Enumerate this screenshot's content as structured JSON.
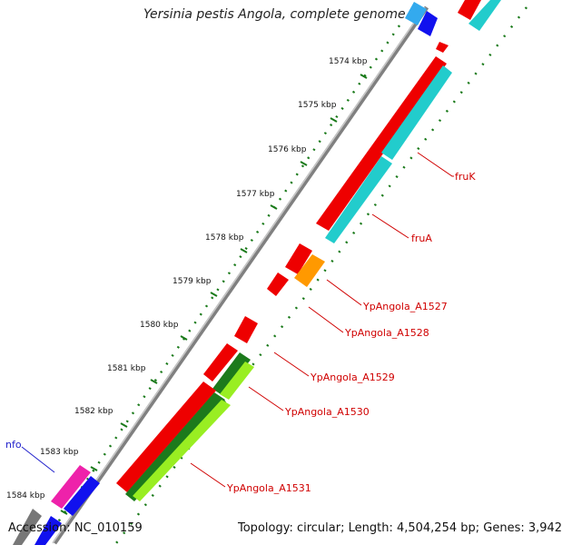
{
  "header": {
    "title": "Yersinia pestis Angola, complete genome"
  },
  "footer": {
    "accession": "Accession: NC_010159",
    "topology": "Topology: circular; Length: 4,504,254 bp; Genes: 3,942"
  },
  "ruler": {
    "ticks": [
      "1574 kbp",
      "1575 kbp",
      "1576 kbp",
      "1577 kbp",
      "1578 kbp",
      "1579 kbp",
      "1580 kbp",
      "1581 kbp",
      "1582 kbp",
      "1583 kbp",
      "1584 kbp"
    ]
  },
  "gene_labels": {
    "fruK": "fruK",
    "fruA": "fruA",
    "a1527": "YpAngola_A1527",
    "a1528": "YpAngola_A1528",
    "a1529": "YpAngola_A1529",
    "a1530": "YpAngola_A1530",
    "a1531": "YpAngola_A1531",
    "nfo": "nfo"
  },
  "colors": {
    "backbone": "#808080",
    "ruler_dots": "#1a7a1a",
    "cds_red": "#ee0000",
    "cds_cyan": "#22cccc",
    "cds_lightblue": "#33aaee",
    "cds_blue": "#1111ee",
    "cds_orange": "#ff9900",
    "cds_darkgreen": "#1c7a1c",
    "cds_lightgreen": "#99ee22",
    "cds_magenta": "#ee22aa",
    "label_red": "#d00000",
    "label_blue": "#2222cc"
  }
}
